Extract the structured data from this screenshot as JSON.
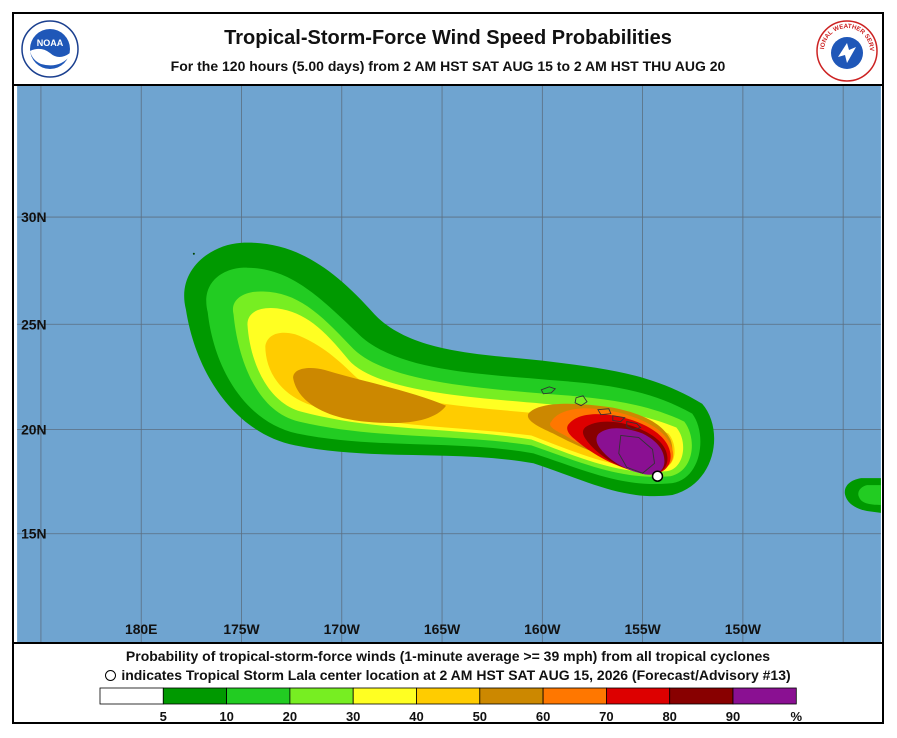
{
  "header": {
    "title": "Tropical-Storm-Force Wind Speed Probabilities",
    "subtitle": "For the 120 hours (5.00 days) from 2 AM HST SAT AUG 15 to 2 AM HST THU AUG 20",
    "logo_left": "NOAA",
    "logo_right": "NATIONAL WEATHER SERVICE"
  },
  "map": {
    "ocean_color": "#6fa4d0",
    "lat_labels": [
      "30N",
      "25N",
      "20N",
      "15N"
    ],
    "lon_labels": [
      "180E",
      "175W",
      "170W",
      "165W",
      "160W",
      "155W",
      "150W"
    ],
    "storm_center_marker": "open-circle"
  },
  "footer": {
    "line1": "Probability of tropical-storm-force winds (1-minute average >= 39 mph) from all tropical cyclones",
    "line2": "indicates Tropical Storm Lala center location at 2 AM HST SAT AUG 15, 2026 (Forecast/Advisory #13)"
  },
  "legend": {
    "labels": [
      "5",
      "10",
      "20",
      "30",
      "40",
      "50",
      "60",
      "70",
      "80",
      "90",
      "%"
    ],
    "colors": [
      "#ffffff",
      "#009900",
      "#22cc22",
      "#77ee22",
      "#ffff22",
      "#ffcc00",
      "#cc8800",
      "#ff7700",
      "#dd0000",
      "#880000",
      "#8a1092"
    ]
  }
}
